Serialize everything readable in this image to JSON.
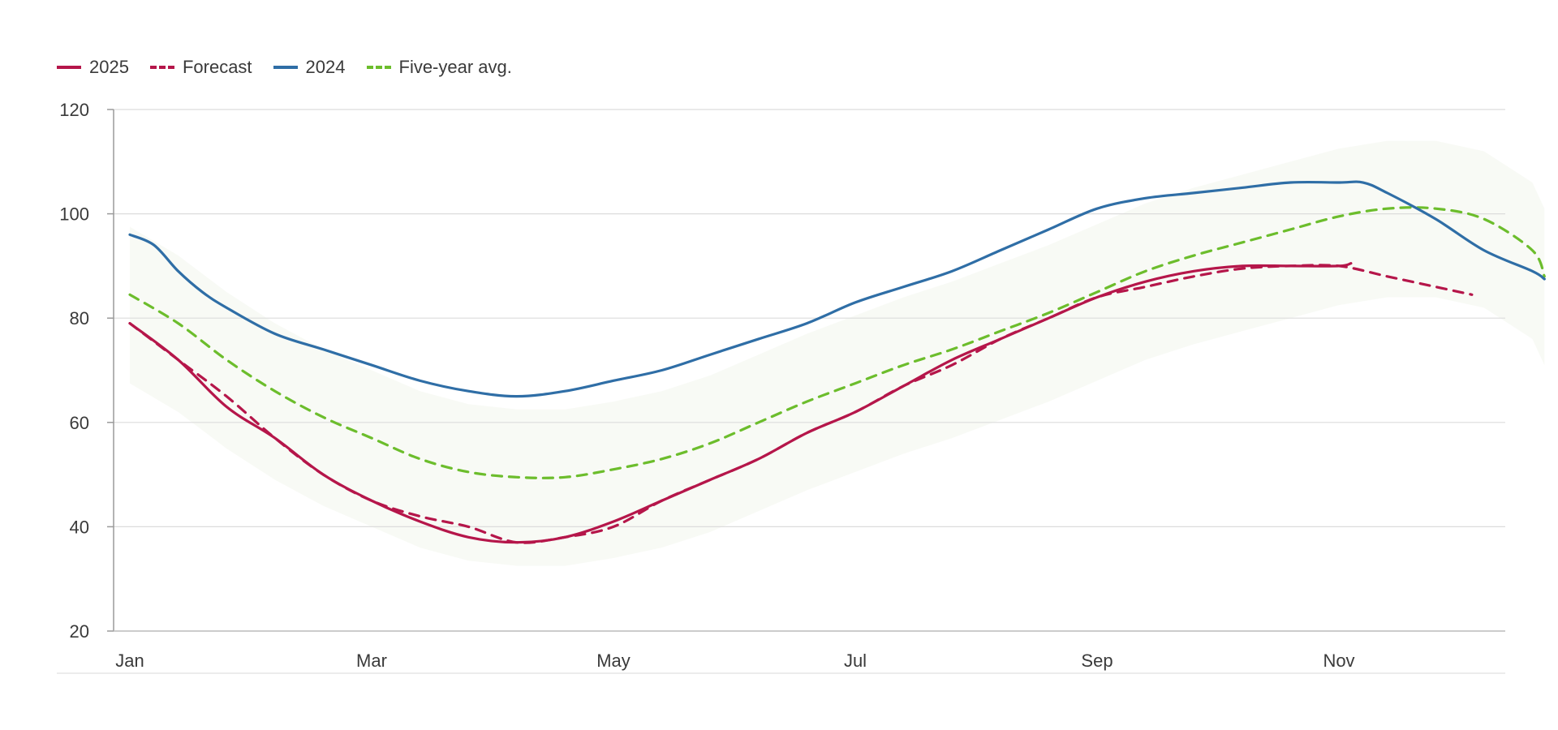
{
  "chart_data": {
    "type": "line",
    "title": "",
    "xlabel": "",
    "ylabel": "",
    "x_ticks": [
      "Jan",
      "Mar",
      "May",
      "Jul",
      "Sep",
      "Nov"
    ],
    "x_tick_positions": [
      0,
      2,
      4,
      6,
      8,
      10
    ],
    "xlim": [
      0,
      11.7
    ],
    "ylim": [
      20,
      120
    ],
    "y_ticks": [
      20,
      40,
      60,
      80,
      100,
      120
    ],
    "grid": "horizontal",
    "legend_position": "top-left",
    "series": [
      {
        "name": "2025",
        "color": "#b5164a",
        "style": "solid",
        "x": [
          0,
          0.4,
          0.8,
          1.2,
          1.6,
          2.0,
          2.4,
          2.8,
          3.2,
          3.6,
          4.0,
          4.4,
          4.8,
          5.2,
          5.6,
          6.0,
          6.4,
          6.8,
          7.2,
          7.6,
          8.0,
          8.4,
          8.8,
          9.2,
          9.6,
          10.0,
          10.1
        ],
        "values": [
          79,
          72,
          63,
          57,
          50,
          45,
          41,
          38,
          37,
          38,
          41,
          45,
          49,
          53,
          58,
          62,
          67,
          72,
          76,
          80,
          84,
          87,
          89,
          90,
          90,
          90,
          90.5
        ]
      },
      {
        "name": "Forecast",
        "color": "#b5164a",
        "style": "dashed",
        "x": [
          0,
          0.4,
          0.8,
          1.2,
          1.6,
          2.0,
          2.4,
          2.8,
          3.2,
          3.6,
          4.0,
          4.4,
          4.8,
          5.2,
          5.6,
          6.0,
          6.4,
          6.8,
          7.2,
          7.6,
          8.0,
          8.4,
          8.8,
          9.2,
          9.6,
          10.0,
          10.4,
          10.8,
          11.1
        ],
        "values": [
          79,
          72,
          65,
          57,
          50,
          45,
          42,
          40,
          37,
          38,
          40,
          45,
          49,
          53,
          58,
          62,
          67,
          71,
          76,
          80,
          84,
          86,
          88,
          89.5,
          90,
          90,
          88,
          86,
          84.5
        ]
      },
      {
        "name": "2024",
        "color": "#2f6ea6",
        "style": "solid",
        "x": [
          0,
          0.2,
          0.4,
          0.6,
          0.8,
          1.2,
          1.6,
          2.0,
          2.4,
          2.8,
          3.2,
          3.6,
          4.0,
          4.4,
          4.8,
          5.2,
          5.6,
          6.0,
          6.4,
          6.8,
          7.2,
          7.6,
          8.0,
          8.4,
          8.8,
          9.2,
          9.6,
          10.0,
          10.2,
          10.4,
          10.8,
          11.2,
          11.6,
          11.7
        ],
        "values": [
          96,
          94,
          89,
          85,
          82,
          77,
          74,
          71,
          68,
          66,
          65,
          66,
          68,
          70,
          73,
          76,
          79,
          83,
          86,
          89,
          93,
          97,
          101,
          103,
          104,
          105,
          106,
          106,
          106,
          104,
          99,
          93,
          89,
          87.5
        ]
      },
      {
        "name": "Five-year avg.",
        "color": "#6cbd2c",
        "style": "dashed",
        "x": [
          0,
          0.4,
          0.8,
          1.2,
          1.6,
          2.0,
          2.4,
          2.8,
          3.2,
          3.6,
          4.0,
          4.4,
          4.8,
          5.2,
          5.6,
          6.0,
          6.4,
          6.8,
          7.2,
          7.6,
          8.0,
          8.4,
          8.8,
          9.2,
          9.6,
          10.0,
          10.4,
          10.8,
          11.2,
          11.6,
          11.7
        ],
        "values": [
          84.5,
          79,
          72,
          66,
          61,
          57,
          53,
          50.5,
          49.5,
          49.5,
          51,
          53,
          56,
          60,
          64,
          67.5,
          71,
          74,
          77.5,
          81,
          85,
          89,
          92,
          94.5,
          97,
          99.5,
          101,
          101,
          99,
          93,
          88
        ]
      }
    ]
  }
}
